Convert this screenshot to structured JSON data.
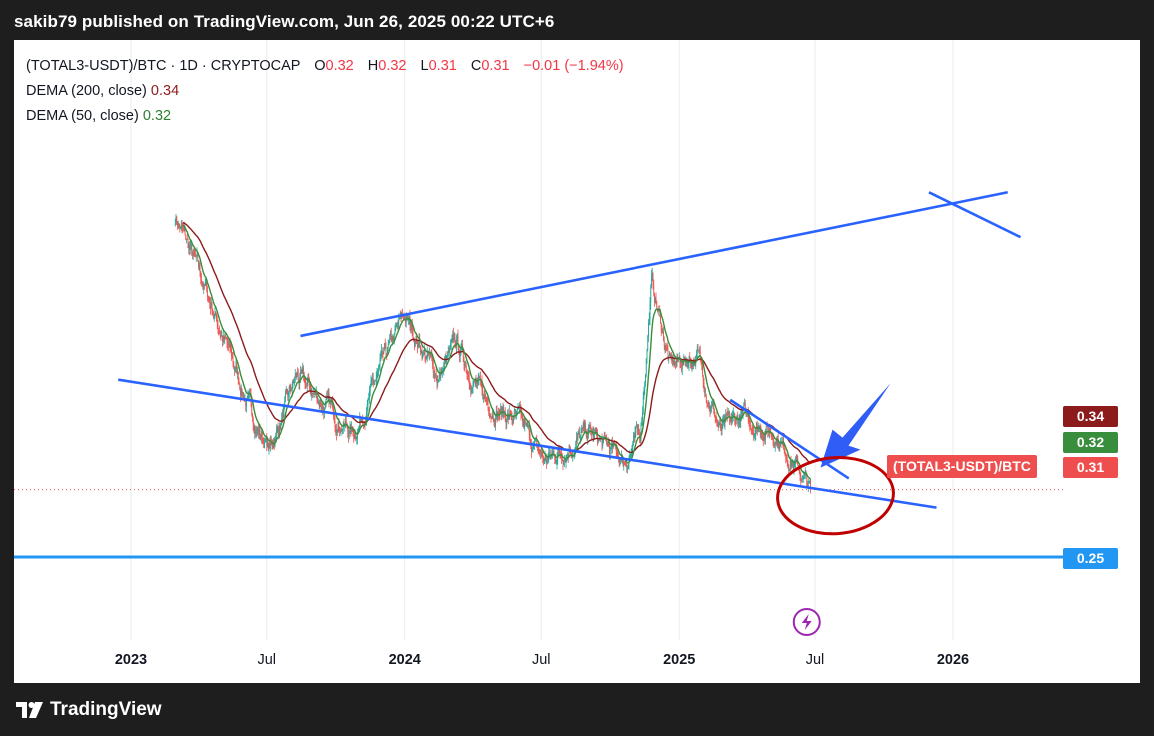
{
  "header": {
    "publisher_line": "sakib79 published on TradingView.com, Jun 26, 2025 00:22 UTC+6"
  },
  "legend": {
    "symbol_line": "(TOTAL3-USDT)/BTC · 1D · CRYPTOCAP",
    "open_label": "O",
    "open_value": "0.32",
    "high_label": "H",
    "high_value": "0.32",
    "low_label": "L",
    "low_value": "0.31",
    "close_label": "C",
    "close_value": "0.31",
    "change": "−0.01 (−1.94%)",
    "dema200_label": "DEMA (200, close)",
    "dema200_value": "0.34",
    "dema50_label": "DEMA (50, close)",
    "dema50_value": "0.32"
  },
  "price_tags": {
    "dema200": "0.34",
    "dema50": "0.32",
    "symbol_name": "(TOTAL3-USDT)/BTC",
    "last": "0.31",
    "hline": "0.25"
  },
  "footer": {
    "brand": "TradingView"
  },
  "colors": {
    "up": "#26a69a",
    "down": "#ef5350",
    "trendline": "#2962ff",
    "dema200": "#8c1b1b",
    "dema50": "#388e3c",
    "hline": "#2196f3",
    "circle": "#c00000"
  },
  "chart_data": {
    "type": "candlestick",
    "interval": "1D",
    "x_ticks": [
      {
        "label": "2023",
        "date": "2023-01-01",
        "bold": true
      },
      {
        "label": "Jul",
        "date": "2023-07-01",
        "bold": false
      },
      {
        "label": "2024",
        "date": "2024-01-01",
        "bold": true
      },
      {
        "label": "Jul",
        "date": "2024-07-01",
        "bold": false
      },
      {
        "label": "2025",
        "date": "2025-01-01",
        "bold": true
      },
      {
        "label": "Jul",
        "date": "2025-07-01",
        "bold": false
      },
      {
        "label": "2026",
        "date": "2026-01-01",
        "bold": true
      }
    ],
    "price_anchor_points": [
      {
        "date": "2023-03-01",
        "price": 0.555
      },
      {
        "date": "2023-04-15",
        "price": 0.48
      },
      {
        "date": "2023-06-15",
        "price": 0.37
      },
      {
        "date": "2023-07-05",
        "price": 0.345
      },
      {
        "date": "2023-08-10",
        "price": 0.41
      },
      {
        "date": "2023-10-25",
        "price": 0.36
      },
      {
        "date": "2023-12-31",
        "price": 0.465
      },
      {
        "date": "2024-02-15",
        "price": 0.41
      },
      {
        "date": "2024-03-10",
        "price": 0.44
      },
      {
        "date": "2024-04-15",
        "price": 0.39
      },
      {
        "date": "2024-06-01",
        "price": 0.37
      },
      {
        "date": "2024-07-05",
        "price": 0.335
      },
      {
        "date": "2024-09-01",
        "price": 0.36
      },
      {
        "date": "2024-10-20",
        "price": 0.335
      },
      {
        "date": "2024-11-10",
        "price": 0.36
      },
      {
        "date": "2024-11-25",
        "price": 0.495
      },
      {
        "date": "2024-12-20",
        "price": 0.42
      },
      {
        "date": "2025-01-25",
        "price": 0.43
      },
      {
        "date": "2025-02-25",
        "price": 0.36
      },
      {
        "date": "2025-03-25",
        "price": 0.375
      },
      {
        "date": "2025-05-10",
        "price": 0.36
      },
      {
        "date": "2025-06-25",
        "price": 0.31
      }
    ],
    "trendlines": [
      {
        "from": {
          "date": "2023-08-15",
          "price": 0.447
        },
        "to": {
          "date": "2026-03-15",
          "price": 0.575
        }
      },
      {
        "from": {
          "date": "2022-12-15",
          "price": 0.408
        },
        "to": {
          "date": "2025-12-10",
          "price": 0.294
        }
      },
      {
        "from": {
          "date": "2025-03-10",
          "price": 0.39
        },
        "to": {
          "date": "2025-08-15",
          "price": 0.32
        }
      },
      {
        "from": {
          "date": "2025-11-30",
          "price": 0.575
        },
        "to": {
          "date": "2026-04-01",
          "price": 0.535
        }
      }
    ],
    "horizontal_line": 0.25,
    "last_price": 0.31
  }
}
